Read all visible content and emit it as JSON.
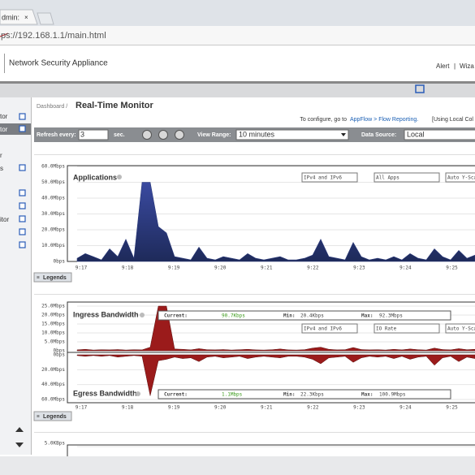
{
  "browser": {
    "tab": "dmin:",
    "url": "ps://192.168.1.1/main.html"
  },
  "header": {
    "product": "Network Security Appliance",
    "links": [
      "Alert",
      "Wiza"
    ]
  },
  "sidebar": {
    "items": [
      "tor",
      "tor",
      "r",
      "s",
      "itor"
    ]
  },
  "page": {
    "breadcrumb": "Dashboard /",
    "title": "Real-Time Monitor",
    "config_prefix": "To configure, go to",
    "config_link": "AppFlow > Flow Reporting.",
    "config_suffix": "[Using Local Col"
  },
  "toolbar": {
    "refresh_label": "Refresh every:",
    "refresh_value": "3",
    "refresh_unit": "sec.",
    "range_label": "View Range:",
    "range_value": "10 minutes",
    "source_label": "Data Source:",
    "source_value": "Local"
  },
  "charts": [
    {
      "type": "area",
      "title": "Applications",
      "selects": [
        "IPv4 and IPv6",
        "All Apps",
        "Auto Y-Scal"
      ],
      "legend_button": "Legends",
      "color": "#2b3a7a",
      "ylim": [
        0,
        60
      ],
      "yticks": [
        {
          "value": 0,
          "label": "0bps"
        },
        {
          "value": 10,
          "label": "10.0Mbps"
        },
        {
          "value": 20,
          "label": "20.0Mbps"
        },
        {
          "value": 30,
          "label": "30.0Mbps"
        },
        {
          "value": 40,
          "label": "40.0Mbps"
        },
        {
          "value": 50,
          "label": "50.0Mbps"
        },
        {
          "value": 60,
          "label": "60.0Mbps"
        }
      ],
      "xticks": [
        "9:17",
        "9:18",
        "9:19",
        "9:20",
        "9:21",
        "9:22",
        "9:23",
        "9:24",
        "9:25"
      ],
      "values": [
        2,
        5,
        3,
        1,
        8,
        3,
        14,
        2,
        50,
        50,
        22,
        18,
        3,
        2,
        1,
        9,
        2,
        1,
        3,
        2,
        1,
        5,
        2,
        1,
        2,
        3,
        1,
        1,
        2,
        4,
        14,
        3,
        2,
        1,
        12,
        3,
        1,
        2,
        1,
        3,
        1,
        5,
        2,
        1,
        8,
        3,
        1,
        7,
        2,
        4
      ]
    },
    {
      "type": "mirror-area",
      "title": "Ingress Bandwidth",
      "title2": "Egress Bandwidth",
      "selects": [
        "IPv4 and IPv6",
        "IO Rate",
        "Auto Y-Scal"
      ],
      "legend_button": "Legends",
      "stat_labels": [
        "Current:",
        "Min:",
        "Max:"
      ],
      "ingress_stats": [
        "90.7Kbps",
        "20.4Kbps",
        "92.3Mbps"
      ],
      "egress_stats": [
        "1.1Mbps",
        "22.3Kbps",
        "100.9Mbps"
      ],
      "ylim": [
        0,
        25
      ],
      "yticks": [
        {
          "value": 0,
          "label": "0bps"
        },
        {
          "value": 5,
          "label": "5.0Mbps"
        },
        {
          "value": 10,
          "label": "10.0Mbps"
        },
        {
          "value": 15,
          "label": "15.0Mbps"
        },
        {
          "value": 20,
          "label": "20.0Mbps"
        },
        {
          "value": 25,
          "label": "25.0Mbps"
        }
      ],
      "y2lim": [
        0,
        60
      ],
      "y2ticks": [
        {
          "value": 0,
          "label": "0bps"
        },
        {
          "value": 20,
          "label": "20.0Mbps"
        },
        {
          "value": 40,
          "label": "40.0Mbps"
        },
        {
          "value": 60,
          "label": "60.0Mbps"
        }
      ],
      "xticks": [
        "9:17",
        "9:18",
        "9:19",
        "9:20",
        "9:21",
        "9:22",
        "9:23",
        "9:24",
        "9:25"
      ],
      "series": [
        {
          "color": "#9b1b1b",
          "values": [
            0.5,
            0.8,
            0.4,
            0.6,
            0.5,
            0.7,
            0.4,
            0.6,
            0.5,
            2,
            25,
            25,
            1,
            0.8,
            0.5,
            1.2,
            0.6,
            0.5,
            0.7,
            0.4,
            0.6,
            0.8,
            0.5,
            0.4,
            0.6,
            1,
            0.5,
            0.4,
            0.6,
            1.5,
            2,
            0.8,
            0.5,
            0.6,
            1.8,
            0.7,
            0.5,
            0.6,
            0.4,
            0.8,
            0.5,
            1,
            0.6,
            0.4,
            1.5,
            0.7,
            0.5,
            1.2,
            0.6,
            0.8
          ]
        },
        {
          "axis": "y2",
          "color": "#9b1b1b",
          "values": [
            1,
            2,
            1,
            2,
            1,
            3,
            2,
            1,
            2,
            55,
            8,
            6,
            3,
            5,
            4,
            9,
            3,
            2,
            4,
            3,
            2,
            5,
            3,
            2,
            3,
            4,
            2,
            2,
            3,
            6,
            12,
            4,
            3,
            2,
            10,
            4,
            2,
            3,
            2,
            5,
            2,
            6,
            3,
            2,
            14,
            4,
            2,
            9,
            3,
            5
          ]
        }
      ]
    },
    {
      "type": "area",
      "yticks": [
        {
          "value": 5,
          "label": "5.0KBps"
        }
      ]
    }
  ]
}
